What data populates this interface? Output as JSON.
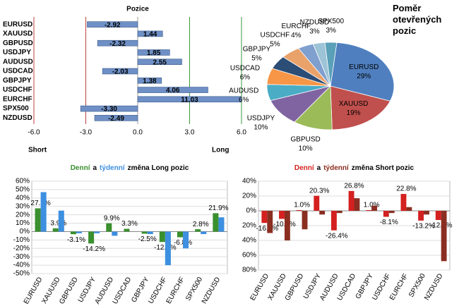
{
  "chart_data": [
    {
      "type": "hbar",
      "title": "Pozice",
      "categories": [
        "EURUSD",
        "XAUUSD",
        "GBPUSD",
        "USDJPY",
        "AUDUSD",
        "USDCAD",
        "GBPJPY",
        "USDCHF",
        "EURCHF",
        "SPX500",
        "NZDUSD"
      ],
      "values": [
        -2.92,
        1.44,
        -2.32,
        1.85,
        2.55,
        -2.03,
        1.38,
        4.06,
        11.03,
        -3.3,
        -2.49
      ],
      "value_labels": [
        "-2.92",
        "1.44",
        "-2.32",
        "1.85",
        "2.55",
        "-2.03",
        "1.38",
        "4.06",
        "11.03",
        "-3.30",
        "-2.49"
      ],
      "color": "#6f90c6",
      "xlim": [
        -6,
        6
      ],
      "xticks": [
        {
          "value": -6,
          "label": "-6.0"
        },
        {
          "value": -3,
          "label": "-3.0"
        },
        {
          "value": 0,
          "label": "0.0"
        },
        {
          "value": 3,
          "label": "3.0"
        },
        {
          "value": 6,
          "label": "6.0"
        }
      ],
      "xlabel_left": "Short",
      "xlabel_right": "Long",
      "grid": true
    },
    {
      "type": "pie",
      "title": "Poměr otevřených pozic",
      "categories": [
        "EURUSD",
        "XAUUSD",
        "GBPUSD",
        "USDJPY",
        "AUDUSD",
        "USDCAD",
        "GBPJPY",
        "USDCHF",
        "EURCHF",
        "NZDUSD",
        "SPX500"
      ],
      "values": [
        29,
        19,
        10,
        10,
        6,
        6,
        5,
        5,
        4,
        3,
        3
      ],
      "value_labels": [
        "29%",
        "19%",
        "10%",
        "10%",
        "6%",
        "6%",
        "5%",
        "5%",
        "4%",
        "3%",
        "3%"
      ],
      "colors": [
        "#4f7fbf",
        "#c0504d",
        "#9bbb59",
        "#8064a2",
        "#4bacc6",
        "#f79646",
        "#2c4d75",
        "#e8a26a",
        "#7f9fcf",
        "#9dc3d6",
        "#5aa0b8"
      ]
    },
    {
      "type": "bar",
      "title_join": "a",
      "title_rest": "změna Long pozic",
      "categories": [
        "EURUSD",
        "XAUUSD",
        "GBPUSD",
        "USDJPY",
        "AUDUSD",
        "USDCAD",
        "GBPJPY",
        "USDCHF",
        "EURCHF",
        "SPX500",
        "NZDUSD"
      ],
      "series": [
        {
          "name": "Denní",
          "color": "#3a8f2e",
          "values": [
            27.7,
            3.9,
            -3.1,
            -14.2,
            9.9,
            3.3,
            -2.5,
            -12.4,
            -6.8,
            2.8,
            21.9
          ],
          "value_labels": [
            "27.7%",
            "3.9%",
            "-3.1%",
            "-14.2%",
            "9.9%",
            "3.3%",
            "-2.5%",
            "-12.4%",
            "-6.8%",
            "2.8%",
            "21.9%"
          ]
        },
        {
          "name": "týdenní",
          "color": "#3d8fe0",
          "values": [
            47,
            25,
            -2,
            -2,
            -5,
            0,
            -3,
            -40,
            -20,
            -3,
            17
          ]
        }
      ],
      "ylim": [
        -50,
        60
      ],
      "yticks": [
        {
          "value": -50,
          "label": "-50%"
        },
        {
          "value": -40,
          "label": "-40%"
        },
        {
          "value": -30,
          "label": "-30%"
        },
        {
          "value": -20,
          "label": "-20%"
        },
        {
          "value": -10,
          "label": "-10%"
        },
        {
          "value": 0,
          "label": "0%"
        },
        {
          "value": 10,
          "label": "10%"
        },
        {
          "value": 20,
          "label": "20%"
        },
        {
          "value": 30,
          "label": "30%"
        },
        {
          "value": 40,
          "label": "40%"
        },
        {
          "value": 50,
          "label": "50%"
        },
        {
          "value": 60,
          "label": "60%"
        }
      ],
      "grid": true
    },
    {
      "type": "bar",
      "title_join": "a",
      "title_rest": "změna Short pozic",
      "categories": [
        "EURUSD",
        "XAUUSD",
        "GBPUSD",
        "USDJPY",
        "AUDUSD",
        "USDCAD",
        "GBPJPY",
        "USDCHF",
        "EURCHF",
        "SPX500",
        "NZDUSD"
      ],
      "series": [
        {
          "name": "Denní",
          "color": "#d42020",
          "values": [
            -16.4,
            -10.9,
            1.0,
            20.3,
            -26.4,
            26.8,
            1.0,
            -8.1,
            22.8,
            -13.2,
            -12.4
          ],
          "value_labels": [
            "-16.4%",
            "-10.9%",
            "1.0%",
            "20.3%",
            "-26.4%",
            "26.8%",
            "1.0%",
            "-8.1%",
            "22.8%",
            "-13.2%",
            "-12.4%"
          ]
        },
        {
          "name": "týdenní",
          "color": "#8b2e22",
          "values": [
            -30,
            -40,
            -25,
            -5,
            -3,
            17,
            7,
            -3,
            5,
            -5,
            -68
          ]
        }
      ],
      "ylim": [
        -80,
        40
      ],
      "yticks": [
        {
          "value": -80,
          "label": "80%"
        },
        {
          "value": -60,
          "label": "60%"
        },
        {
          "value": -40,
          "label": "40%"
        },
        {
          "value": -20,
          "label": "20%"
        },
        {
          "value": 0,
          "label": "0%"
        },
        {
          "value": 20,
          "label": "20%"
        },
        {
          "value": 40,
          "label": "40%"
        }
      ],
      "grid": true
    }
  ]
}
